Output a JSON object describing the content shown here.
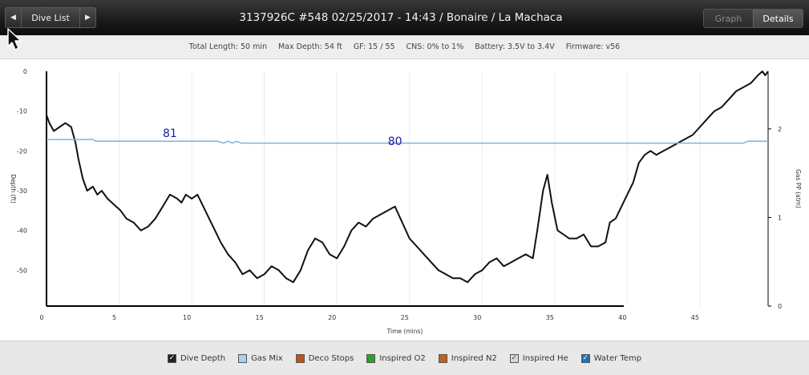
{
  "header": {
    "nav_label": "Dive List",
    "prev_glyph": "◀",
    "next_glyph": "▶",
    "title": "3137926C #548 02/25/2017 - 14:43  / Bonaire / La Machaca",
    "tabs": [
      {
        "label": "Graph",
        "active": false
      },
      {
        "label": "Details",
        "active": true
      }
    ]
  },
  "info": [
    "Total Length: 50 min",
    "Max Depth: 54 ft",
    "GF: 15 / 55",
    "CNS: 0% to 1%",
    "Battery: 3.5V to 3.4V",
    "Firmware: v56"
  ],
  "legend": [
    {
      "label": "Dive Depth",
      "color": "#222222",
      "checked": true
    },
    {
      "label": "Gas Mix",
      "color": "#a9d0f0",
      "checked": false
    },
    {
      "label": "Deco Stops",
      "color": "#c0521e",
      "checked": false
    },
    {
      "label": "Inspired O2",
      "color": "#2aa52a",
      "checked": false
    },
    {
      "label": "Inspired N2",
      "color": "#c0621e",
      "checked": false
    },
    {
      "label": "Inspired He",
      "color": "#d8d8d8",
      "checked": true
    },
    {
      "label": "Water Temp",
      "color": "#2a6fb8",
      "checked": true
    }
  ],
  "chart_data": {
    "type": "line",
    "xlabel": "Time (mins)",
    "ylabel": "Depth (ft)",
    "y2label": "Gas PP (atm)",
    "xlim": [
      0,
      49.7
    ],
    "ylim": [
      0,
      -59
    ],
    "y2lim": [
      0,
      2.65
    ],
    "xticks": [
      0,
      5,
      10,
      15,
      20,
      25,
      30,
      35,
      40,
      45
    ],
    "yticks": [
      0,
      -10,
      -20,
      -30,
      -40,
      -50
    ],
    "y2ticks": [
      0,
      1,
      2
    ],
    "grid": true,
    "series": [
      {
        "key": "depth",
        "color": "#111111",
        "x": [
          0,
          0.2,
          0.5,
          0.9,
          1.3,
          1.7,
          2.0,
          2.2,
          2.5,
          2.8,
          3.2,
          3.5,
          3.8,
          4.2,
          4.5,
          4.8,
          5.1,
          5.5,
          6.0,
          6.5,
          7.0,
          7.5,
          8.0,
          8.5,
          9.0,
          9.3,
          9.6,
          10.0,
          10.4,
          10.8,
          11.2,
          11.6,
          12.0,
          12.5,
          13.0,
          13.5,
          14.0,
          14.5,
          15.0,
          15.5,
          16.0,
          16.5,
          17.0,
          17.5,
          18.0,
          18.5,
          19.0,
          19.5,
          20.0,
          20.5,
          21.0,
          21.5,
          22.0,
          22.5,
          23.0,
          23.5,
          24.0,
          24.5,
          25.0,
          25.5,
          26.0,
          26.5,
          27.0,
          27.5,
          28.0,
          28.5,
          29.0,
          29.5,
          30.0,
          30.5,
          31.0,
          31.5,
          32.0,
          32.5,
          33.0,
          33.5,
          33.8,
          34.2,
          34.5,
          34.8,
          35.2,
          35.6,
          36.0,
          36.5,
          37.0,
          37.5,
          38.0,
          38.5,
          38.8,
          39.2,
          39.6,
          40.0,
          40.4,
          40.8,
          41.2,
          41.6,
          42.0,
          42.5,
          43.0,
          43.5,
          44.0,
          44.5,
          45.0,
          45.5,
          46.0,
          46.5,
          47.0,
          47.5,
          48.0,
          48.5,
          49.0,
          49.3,
          49.5,
          49.7
        ],
        "y": [
          -11,
          -13,
          -15,
          -14,
          -13,
          -14,
          -18,
          -22,
          -27,
          -30,
          -29,
          -31,
          -30,
          -32,
          -33,
          -34,
          -35,
          -37,
          -38,
          -40,
          -39,
          -37,
          -34,
          -31,
          -32,
          -33,
          -31,
          -32,
          -31,
          -34,
          -37,
          -40,
          -43,
          -46,
          -48,
          -51,
          -50,
          -52,
          -51,
          -49,
          -50,
          -52,
          -53,
          -50,
          -45,
          -42,
          -43,
          -46,
          -47,
          -44,
          -40,
          -38,
          -39,
          -37,
          -36,
          -35,
          -34,
          -38,
          -42,
          -44,
          -46,
          -48,
          -50,
          -51,
          -52,
          -52,
          -53,
          -51,
          -50,
          -48,
          -47,
          -49,
          -48,
          -47,
          -46,
          -47,
          -40,
          -30,
          -26,
          -33,
          -40,
          -41,
          -42,
          -42,
          -41,
          -44,
          -44,
          -43,
          -38,
          -37,
          -34,
          -31,
          -28,
          -23,
          -21,
          -20,
          -21,
          -20,
          -19,
          -18,
          -17,
          -16,
          -14,
          -12,
          -10,
          -9,
          -7,
          -5,
          -4,
          -3,
          -1,
          0,
          -1,
          0
        ]
      },
      {
        "key": "gas_pp",
        "axis": "right",
        "color": "#7fb2dc",
        "x": [
          0,
          3.2,
          3.4,
          11.8,
          12.2,
          12.5,
          12.8,
          13.1,
          13.4,
          48.0,
          48.3,
          49.7
        ],
        "y": [
          1.88,
          1.88,
          1.86,
          1.86,
          1.84,
          1.86,
          1.84,
          1.86,
          1.84,
          1.84,
          1.86,
          1.86
        ]
      }
    ],
    "annotations": [
      {
        "text": "81",
        "x": 8.5,
        "y": -16.5
      },
      {
        "text": "80",
        "x": 24,
        "y": -18.5
      }
    ]
  }
}
